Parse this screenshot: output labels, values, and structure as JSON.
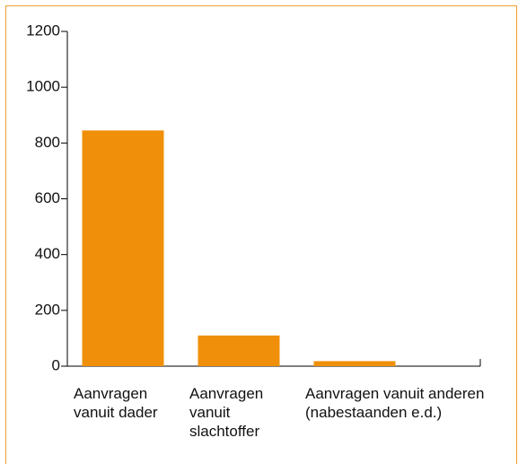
{
  "chart_data": {
    "type": "bar",
    "categories": [
      "Aanvragen vanuit dader",
      "Aanvragen vanuit slachtoffer",
      "Aanvragen vanuit anderen (nabestaanden e.d.)"
    ],
    "values": [
      845,
      110,
      18
    ],
    "color": "#f0900a",
    "ylim": [
      0,
      1200
    ],
    "yticks": [
      0,
      200,
      400,
      600,
      800,
      1000,
      1200
    ]
  }
}
